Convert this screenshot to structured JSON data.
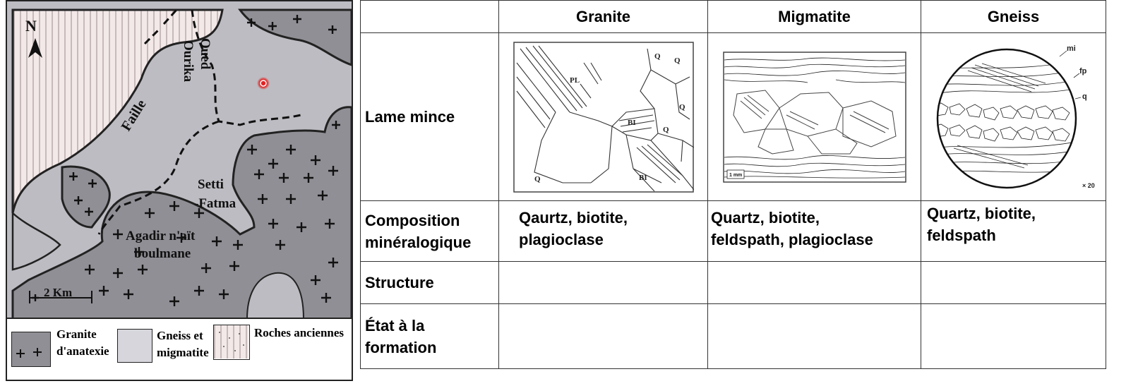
{
  "map": {
    "north_label": "N",
    "labels": {
      "river": [
        "Oued",
        "Ourika"
      ],
      "fault": "Faille",
      "town1": [
        "Setti",
        "-Fatma"
      ],
      "town2": [
        "Agadir n'aït",
        "boulmane"
      ],
      "scale": "2 Km"
    },
    "colors": {
      "granite": "#8f8f95",
      "gneiss": "#bcbcc2",
      "ancient": "#f3e9e9",
      "marker": "#e02020"
    },
    "legend": [
      {
        "icon": "granite-swatch",
        "lines": [
          "Granite",
          "d'anatexie"
        ]
      },
      {
        "icon": "gneiss-swatch",
        "lines": [
          "Gneiss et",
          "migmatite"
        ]
      },
      {
        "icon": "ancient-rocks-swatch",
        "lines": [
          "Roches anciennes"
        ]
      }
    ]
  },
  "table": {
    "columns": [
      "Granite",
      "Migmatite",
      "Gneiss"
    ],
    "rows": {
      "lame": "Lame mince",
      "composition": [
        "Composition",
        "minéralogique"
      ],
      "structure": "Structure",
      "etat": [
        "État à la",
        "formation"
      ]
    },
    "composition": [
      [
        "Qaurtz, biotite,",
        "plagioclase"
      ],
      [
        "Quartz, biotite,",
        "feldspath, plagioclase"
      ],
      [
        "Quartz, biotite,",
        "feldspath"
      ]
    ],
    "thin_section_labels": {
      "granite": [
        "PL",
        "Q",
        "Q",
        "BI",
        "Q",
        "Q",
        "BI",
        "Q"
      ],
      "migmatite": [
        "1 mm"
      ],
      "gneiss": [
        "mi",
        "fp",
        "q",
        "× 20"
      ]
    }
  }
}
